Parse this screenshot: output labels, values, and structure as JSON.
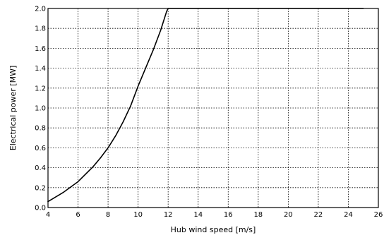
{
  "chart_data": {
    "type": "line",
    "xlabel": "Hub wind speed [m/s]",
    "ylabel": "Electrical power [MW]",
    "xlim": [
      4,
      26
    ],
    "ylim": [
      0,
      2.0
    ],
    "x_ticks": [
      "4",
      "6",
      "8",
      "10",
      "12",
      "14",
      "16",
      "18",
      "20",
      "22",
      "24",
      "26"
    ],
    "y_ticks": [
      "0.0",
      "0.2",
      "0.4",
      "0.6",
      "0.8",
      "1.0",
      "1.2",
      "1.4",
      "1.6",
      "1.8",
      "2.0"
    ],
    "grid": true,
    "series": [
      {
        "x": [
          4,
          5,
          6,
          7,
          7.5,
          8,
          8.5,
          9,
          9.5,
          10,
          10.5,
          11,
          11.5,
          11.9,
          12,
          14,
          16,
          18,
          20,
          22,
          24,
          25
        ],
        "y": [
          0.06,
          0.15,
          0.26,
          0.41,
          0.5,
          0.6,
          0.72,
          0.86,
          1.02,
          1.22,
          1.4,
          1.58,
          1.78,
          1.97,
          2.0,
          2.0,
          2.0,
          2.0,
          2.0,
          2.0,
          2.0,
          2.0
        ],
        "color": "#000000"
      }
    ]
  }
}
